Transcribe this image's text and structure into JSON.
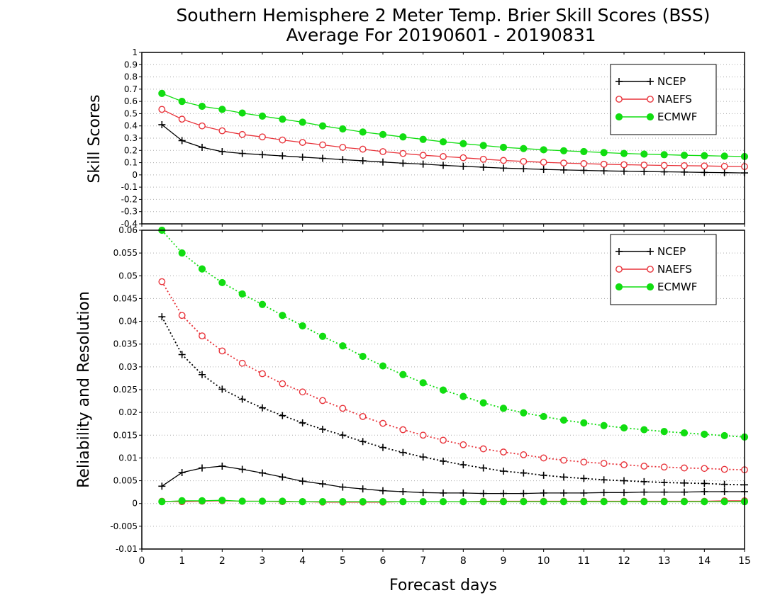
{
  "title_line1": "Southern Hemisphere 2 Meter Temp. Brier Skill Scores (BSS)",
  "title_line2": "Average For 20190601 - 20190831",
  "xlabel": "Forecast days",
  "colors": {
    "NCEP": "#000000",
    "NAEFS": "#e8333a",
    "ECMWF": "#11dd11"
  },
  "chart_data": [
    {
      "type": "line",
      "ylabel": "Skill Scores",
      "xlim": [
        0,
        15
      ],
      "ylim": [
        -0.4,
        1
      ],
      "yticks": [
        "1",
        "0.9",
        "0.8",
        "0.7",
        "0.6",
        "0.5",
        "0.4",
        "0.3",
        "0.2",
        "0.1",
        "0",
        "-0.1",
        "-0.2",
        "-0.3",
        "-0.4"
      ],
      "ytick_values": [
        1,
        0.9,
        0.8,
        0.7,
        0.6,
        0.5,
        0.4,
        0.3,
        0.2,
        0.1,
        0,
        -0.1,
        -0.2,
        -0.3,
        -0.4
      ],
      "grid": true,
      "legend_position": "top-right",
      "x": [
        0.5,
        1,
        1.5,
        2,
        2.5,
        3,
        3.5,
        4,
        4.5,
        5,
        5.5,
        6,
        6.5,
        7,
        7.5,
        8,
        8.5,
        9,
        9.5,
        10,
        10.5,
        11,
        11.5,
        12,
        12.5,
        13,
        13.5,
        14,
        14.5,
        15
      ],
      "series": [
        {
          "name": "NCEP",
          "marker": "plus",
          "style": "solid",
          "values": [
            0.41,
            0.28,
            0.225,
            0.19,
            0.175,
            0.165,
            0.155,
            0.145,
            0.135,
            0.125,
            0.115,
            0.105,
            0.095,
            0.088,
            0.078,
            0.07,
            0.063,
            0.055,
            0.05,
            0.045,
            0.04,
            0.037,
            0.033,
            0.03,
            0.027,
            0.025,
            0.023,
            0.02,
            0.018,
            0.016
          ]
        },
        {
          "name": "NAEFS",
          "marker": "open-circle",
          "style": "solid",
          "values": [
            0.535,
            0.455,
            0.4,
            0.36,
            0.33,
            0.31,
            0.285,
            0.265,
            0.245,
            0.225,
            0.21,
            0.19,
            0.175,
            0.16,
            0.15,
            0.14,
            0.128,
            0.118,
            0.11,
            0.103,
            0.097,
            0.092,
            0.087,
            0.083,
            0.08,
            0.077,
            0.075,
            0.073,
            0.07,
            0.068
          ]
        },
        {
          "name": "ECMWF",
          "marker": "filled-circle",
          "style": "solid",
          "values": [
            0.665,
            0.6,
            0.56,
            0.535,
            0.505,
            0.48,
            0.455,
            0.43,
            0.4,
            0.375,
            0.35,
            0.33,
            0.31,
            0.29,
            0.27,
            0.255,
            0.24,
            0.225,
            0.215,
            0.205,
            0.197,
            0.19,
            0.182,
            0.175,
            0.17,
            0.165,
            0.16,
            0.157,
            0.153,
            0.15
          ]
        }
      ]
    },
    {
      "type": "line",
      "ylabel": "Reliability and Resolution",
      "xlim": [
        0,
        15
      ],
      "ylim": [
        -0.01,
        0.06
      ],
      "yticks": [
        "0.06",
        "0.055",
        "0.05",
        "0.045",
        "0.04",
        "0.035",
        "0.03",
        "0.025",
        "0.02",
        "0.015",
        "0.01",
        "0.005",
        "0",
        "-0.005",
        "-0.01"
      ],
      "ytick_values": [
        0.06,
        0.055,
        0.05,
        0.045,
        0.04,
        0.035,
        0.03,
        0.025,
        0.02,
        0.015,
        0.01,
        0.005,
        0,
        -0.005,
        -0.01
      ],
      "xticks": [
        "0",
        "1",
        "2",
        "3",
        "4",
        "5",
        "6",
        "7",
        "8",
        "9",
        "10",
        "11",
        "12",
        "13",
        "14",
        "15"
      ],
      "grid": true,
      "legend_position": "top-right",
      "x": [
        0.5,
        1,
        1.5,
        2,
        2.5,
        3,
        3.5,
        4,
        4.5,
        5,
        5.5,
        6,
        6.5,
        7,
        7.5,
        8,
        8.5,
        9,
        9.5,
        10,
        10.5,
        11,
        11.5,
        12,
        12.5,
        13,
        13.5,
        14,
        14.5,
        15
      ],
      "series": [
        {
          "name": "NCEP",
          "marker": "plus",
          "style": "dotted",
          "group": "resolution",
          "values": [
            0.041,
            0.0327,
            0.0283,
            0.0251,
            0.0229,
            0.021,
            0.0193,
            0.0177,
            0.0163,
            0.015,
            0.0136,
            0.0123,
            0.0112,
            0.0102,
            0.0093,
            0.0085,
            0.0078,
            0.0071,
            0.0067,
            0.0062,
            0.0058,
            0.0055,
            0.0052,
            0.005,
            0.0048,
            0.0046,
            0.0045,
            0.0044,
            0.0042,
            0.0041
          ]
        },
        {
          "name": "NAEFS",
          "marker": "open-circle",
          "style": "dotted",
          "group": "resolution",
          "values": [
            0.0487,
            0.0413,
            0.0368,
            0.0335,
            0.0308,
            0.0285,
            0.0263,
            0.0245,
            0.0226,
            0.0209,
            0.0191,
            0.0176,
            0.0162,
            0.015,
            0.0139,
            0.0129,
            0.012,
            0.0113,
            0.0107,
            0.01,
            0.0095,
            0.0091,
            0.0088,
            0.0085,
            0.0082,
            0.008,
            0.0078,
            0.0077,
            0.0075,
            0.0074
          ]
        },
        {
          "name": "ECMWF",
          "marker": "filled-circle",
          "style": "dotted",
          "group": "resolution",
          "values": [
            0.06,
            0.055,
            0.0515,
            0.0485,
            0.046,
            0.0437,
            0.0413,
            0.039,
            0.0367,
            0.0346,
            0.0323,
            0.0302,
            0.0283,
            0.0265,
            0.0249,
            0.0235,
            0.0221,
            0.0209,
            0.0199,
            0.0191,
            0.0183,
            0.0177,
            0.0171,
            0.0166,
            0.0162,
            0.0158,
            0.0155,
            0.0152,
            0.0149,
            0.0146
          ]
        },
        {
          "name": "NCEP",
          "marker": "plus",
          "style": "solid",
          "group": "reliability",
          "values": [
            0.0038,
            0.0068,
            0.0078,
            0.0082,
            0.0075,
            0.0067,
            0.0058,
            0.0049,
            0.0043,
            0.0036,
            0.0032,
            0.0028,
            0.0026,
            0.0024,
            0.0023,
            0.0023,
            0.0022,
            0.0022,
            0.0022,
            0.0023,
            0.0023,
            0.0023,
            0.0024,
            0.0024,
            0.0025,
            0.0025,
            0.0025,
            0.0026,
            0.0026,
            0.0026
          ]
        },
        {
          "name": "NAEFS",
          "marker": "open-circle",
          "style": "solid",
          "group": "reliability",
          "values": [
            0.0005,
            0.0004,
            0.0005,
            0.0006,
            0.0005,
            0.0005,
            0.0004,
            0.0004,
            0.0003,
            0.0003,
            0.0003,
            0.0003,
            0.0004,
            0.0004,
            0.0004,
            0.0004,
            0.0005,
            0.0005,
            0.0005,
            0.0005,
            0.0005,
            0.0005,
            0.0005,
            0.0005,
            0.0005,
            0.0005,
            0.0005,
            0.0005,
            0.0006,
            0.0006
          ]
        },
        {
          "name": "ECMWF",
          "marker": "filled-circle",
          "style": "solid",
          "group": "reliability",
          "values": [
            0.0004,
            0.0006,
            0.0006,
            0.0007,
            0.0005,
            0.0005,
            0.0005,
            0.0004,
            0.0004,
            0.0004,
            0.0004,
            0.0004,
            0.0004,
            0.0004,
            0.0004,
            0.0004,
            0.0004,
            0.0004,
            0.0004,
            0.0004,
            0.0004,
            0.0004,
            0.0004,
            0.0004,
            0.0004,
            0.0004,
            0.0004,
            0.0004,
            0.0004,
            0.0004
          ]
        }
      ]
    }
  ]
}
